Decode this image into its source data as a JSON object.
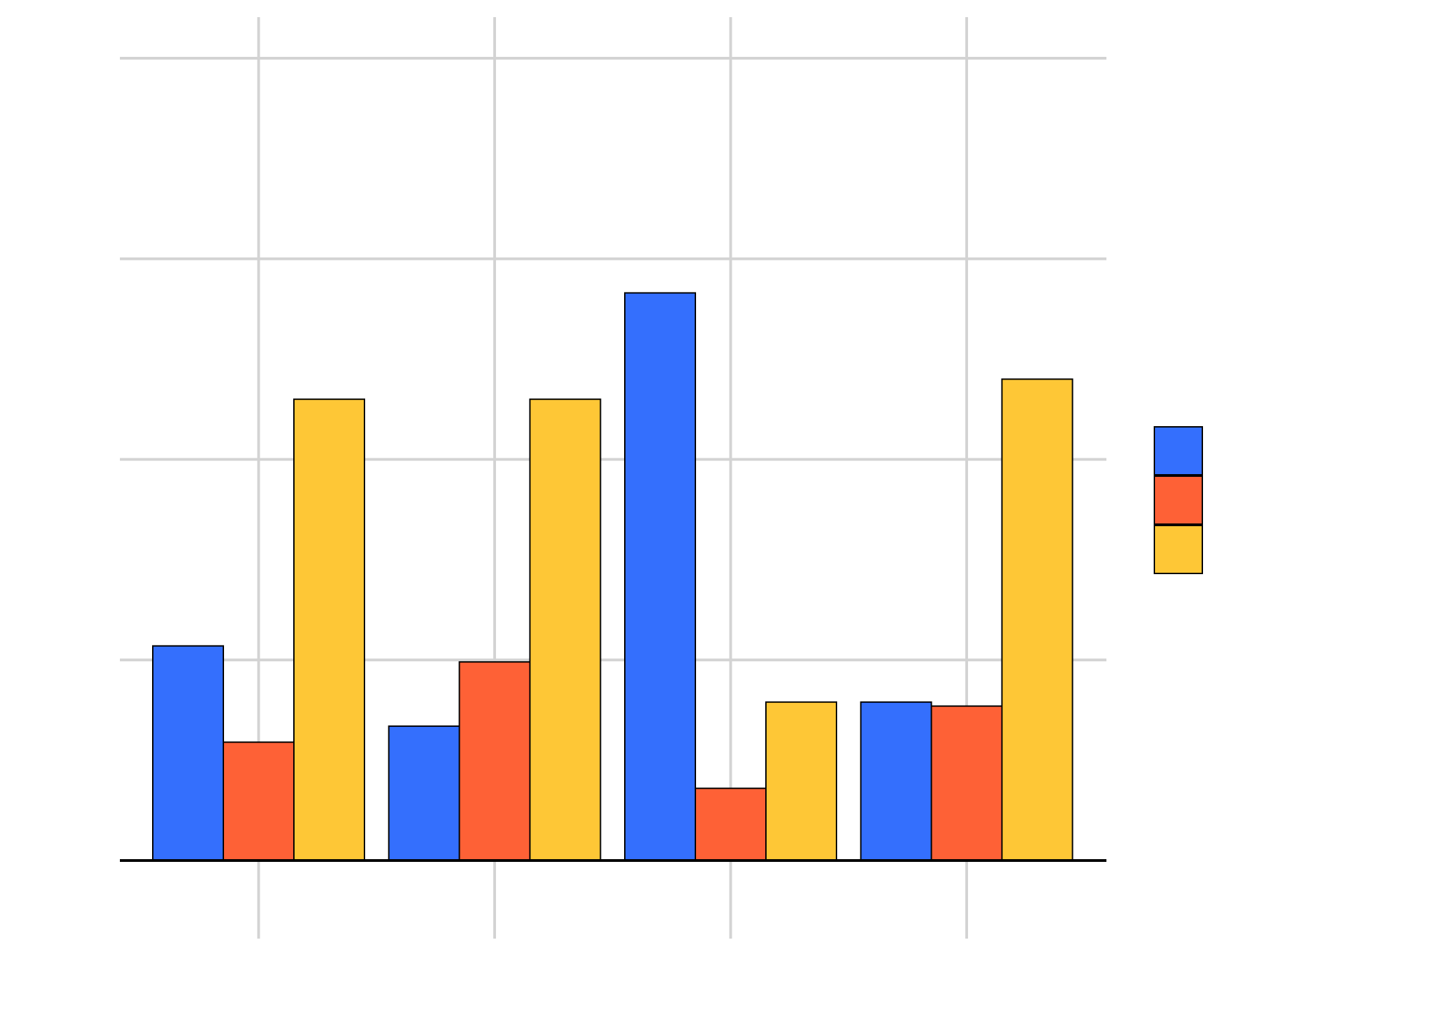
{
  "chart_data": {
    "type": "bar",
    "categories": [
      "",
      "",
      "",
      ""
    ],
    "series": [
      {
        "color": "#346ffd",
        "values": [
          10.7,
          6.7,
          28.3,
          7.9
        ]
      },
      {
        "color": "#fe6136",
        "values": [
          5.9,
          9.9,
          3.6,
          7.7
        ]
      },
      {
        "color": "#fec736",
        "values": [
          23.0,
          23.0,
          7.9,
          24.0
        ]
      }
    ],
    "ylim": [
      0,
      40
    ],
    "yticks": [
      0,
      10,
      20,
      30,
      40
    ],
    "grid": true,
    "legend_position": "right",
    "title": "",
    "xlabel": "",
    "ylabel": ""
  }
}
